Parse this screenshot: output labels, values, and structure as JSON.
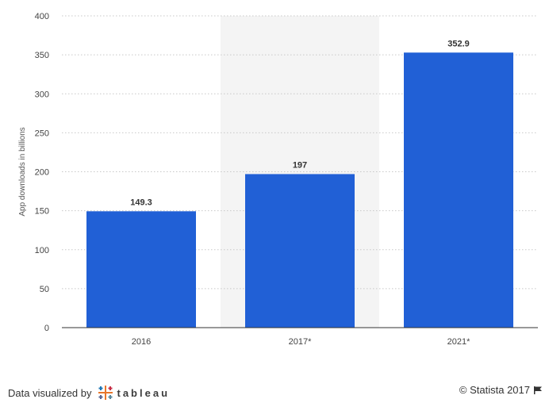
{
  "chart_data": {
    "type": "bar",
    "title": "",
    "xlabel": "",
    "ylabel": "App downloads in billions",
    "categories": [
      "2016",
      "2017*",
      "2021*"
    ],
    "values": [
      149.3,
      197,
      352.9
    ],
    "data_labels": [
      "149.3",
      "197",
      "352.9"
    ],
    "ylim": [
      0,
      400
    ],
    "yticks": [
      0,
      50,
      100,
      150,
      200,
      250,
      300,
      350,
      400
    ],
    "grid": "horizontal dotted",
    "highlighted_category": "2017*",
    "colors": {
      "bar": "#2160d6",
      "highlight_band": "#f4f4f4",
      "grid": "#c8c8c8",
      "axis": "#333333"
    }
  },
  "footer": {
    "credit_label": "Data visualized by",
    "credit_brand": "tableau",
    "copyright": "© Statista 2017",
    "flag_icon": "flag-icon"
  }
}
